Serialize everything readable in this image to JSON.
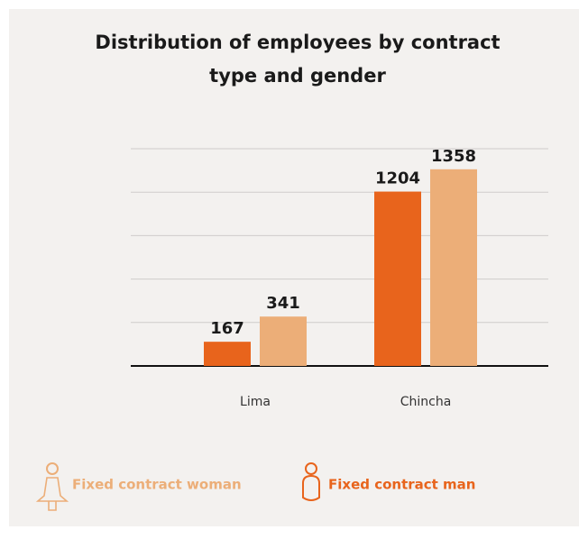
{
  "chart_data": {
    "type": "bar",
    "title": [
      "Distribution of employees by contract",
      "type and gender"
    ],
    "categories": [
      "Lima",
      "Chincha"
    ],
    "series": [
      {
        "name": "Fixed contract man",
        "color": "#e8641c",
        "values": [
          167,
          1204
        ]
      },
      {
        "name": "Fixed contract woman",
        "color": "#ecae78",
        "values": [
          341,
          1358
        ]
      }
    ],
    "ylim": [
      0,
      1500
    ],
    "yticks": [
      0,
      300,
      600,
      900,
      1200,
      1500
    ],
    "grid": true
  }
}
